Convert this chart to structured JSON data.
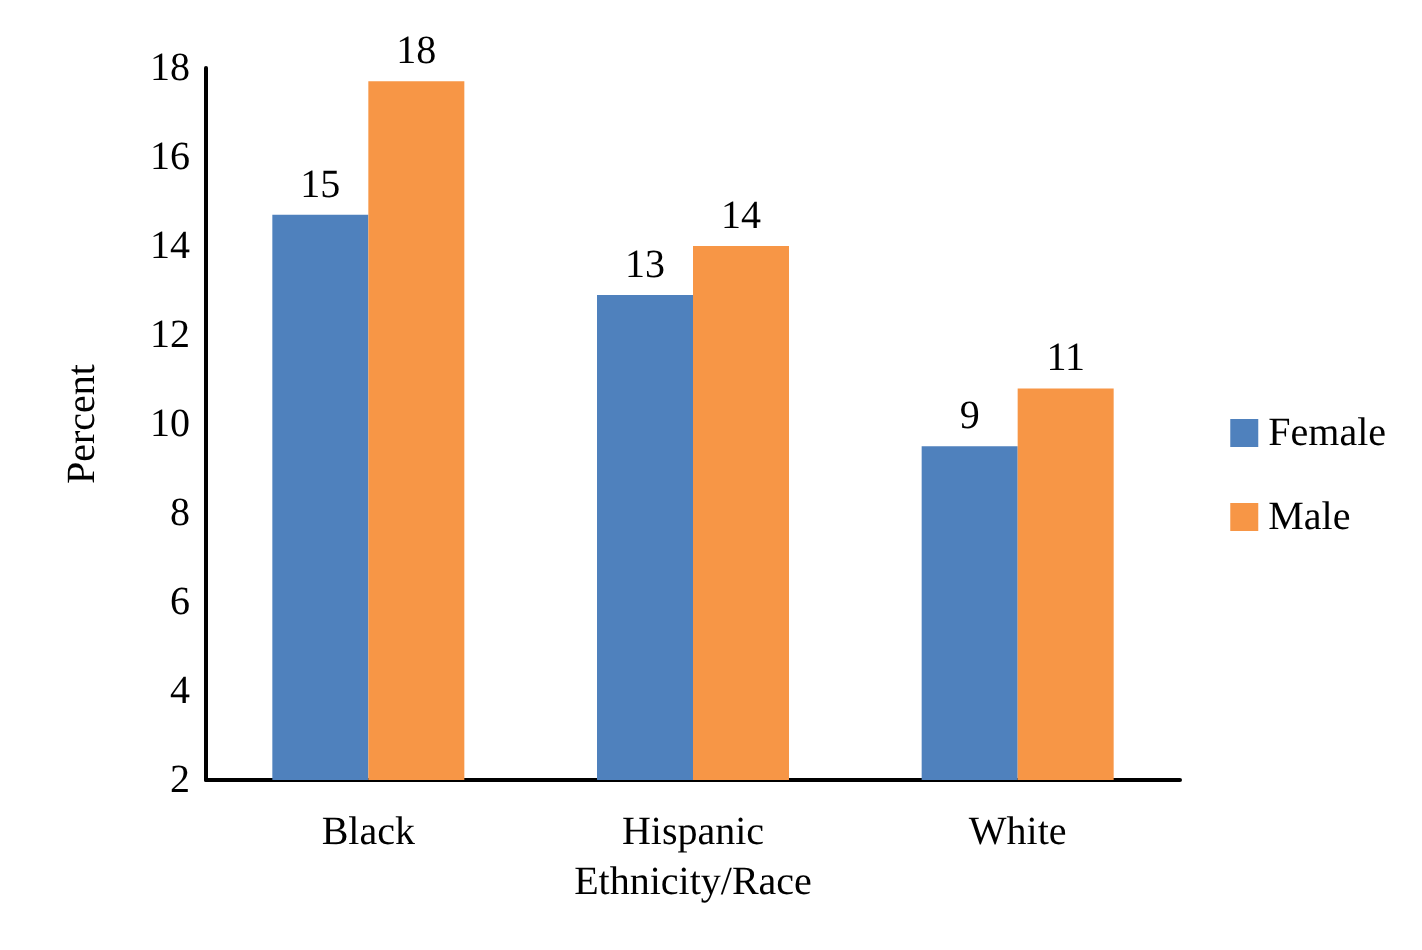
{
  "chart_data": {
    "type": "bar",
    "categories": [
      "Black",
      "Hispanic",
      "White"
    ],
    "xlabel": "Ethnicity/Race",
    "ylabel": "Percent",
    "series": [
      {
        "name": "Female",
        "color": "#4f81bd",
        "values": [
          14.7,
          12.9,
          9.5
        ],
        "value_labels": [
          "15",
          "13",
          "9"
        ]
      },
      {
        "name": "Male",
        "color": "#f79646",
        "values": [
          17.7,
          14.0,
          10.8
        ],
        "value_labels": [
          "18",
          "14",
          "11"
        ]
      }
    ],
    "ylim": [
      2,
      18
    ],
    "yticks": [
      2,
      4,
      6,
      8,
      10,
      12,
      14,
      16,
      18
    ],
    "grid": false,
    "legend": "right"
  }
}
